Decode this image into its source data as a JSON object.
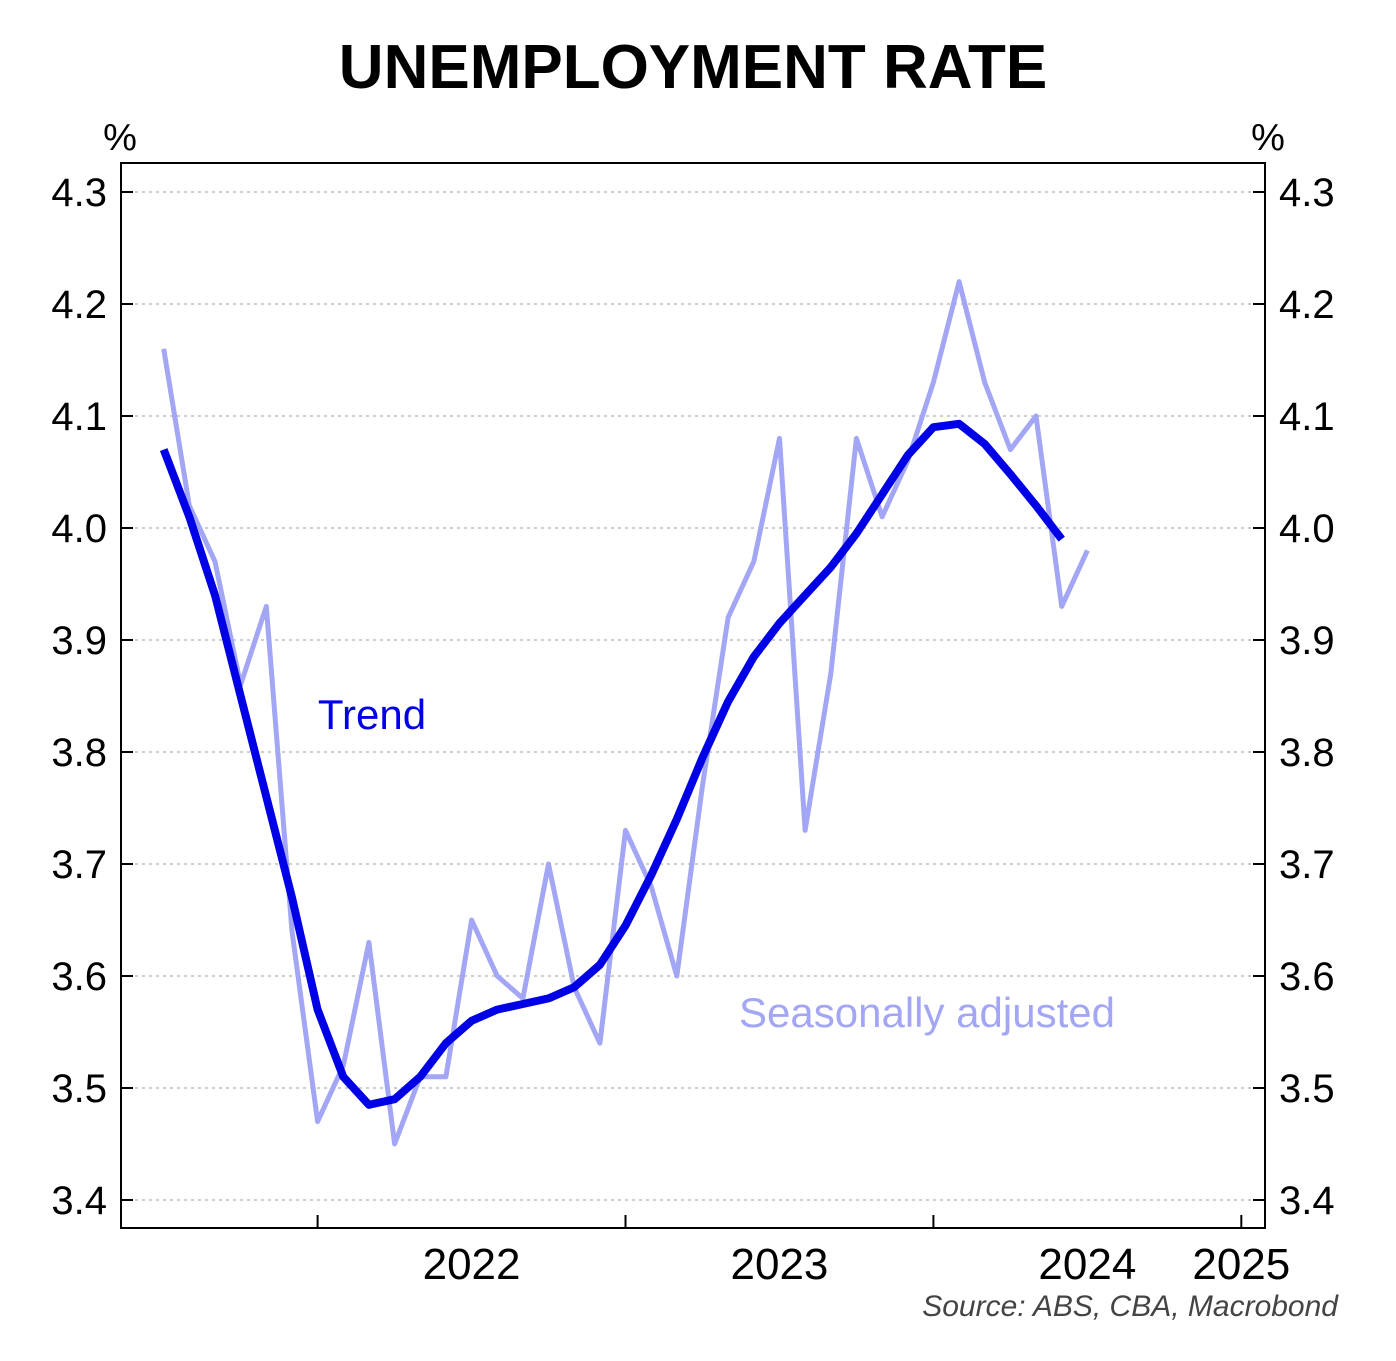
{
  "chart_data": {
    "type": "line",
    "title": "UNEMPLOYMENT RATE",
    "y_unit_left": "%",
    "y_unit_right": "%",
    "ylim": [
      3.4,
      4.3
    ],
    "yticks": [
      "3.4",
      "3.5",
      "3.6",
      "3.7",
      "3.8",
      "3.9",
      "4.0",
      "4.1",
      "4.2",
      "4.3"
    ],
    "xlim": [
      "2021-06",
      "2024-11"
    ],
    "x_ticks": [
      "2022-01",
      "2023-01",
      "2024-01",
      "2025-01"
    ],
    "x_labels": [
      {
        "label": "2022",
        "x": "2022-07"
      },
      {
        "label": "2023",
        "x": "2023-07"
      },
      {
        "label": "2024",
        "x": "2024-07"
      },
      {
        "label": "2025",
        "x": "2025-01"
      }
    ],
    "grid": true,
    "source": "Source: ABS, CBA, Macrobond",
    "x": [
      "2021-07",
      "2021-08",
      "2021-09",
      "2021-10",
      "2021-11",
      "2021-12",
      "2022-01",
      "2022-02",
      "2022-03",
      "2022-04",
      "2022-05",
      "2022-06",
      "2022-07",
      "2022-08",
      "2022-09",
      "2022-10",
      "2022-11",
      "2022-12",
      "2023-01",
      "2023-02",
      "2023-03",
      "2023-04",
      "2023-05",
      "2023-06",
      "2023-07",
      "2023-08",
      "2023-09",
      "2023-10",
      "2023-11",
      "2023-12",
      "2024-01",
      "2024-02",
      "2024-03",
      "2024-04",
      "2024-05",
      "2024-06",
      "2024-07",
      "2024-08",
      "2024-09",
      "2024-10",
      "2024-11"
    ],
    "series": [
      {
        "name": "Seasonally adjusted",
        "color": "#a3a6f5",
        "values": [
          4.16,
          4.02,
          3.97,
          3.86,
          3.93,
          3.64,
          3.47,
          3.52,
          3.63,
          3.45,
          3.51,
          3.51,
          3.65,
          3.6,
          3.58,
          3.7,
          3.59,
          3.54,
          3.73,
          3.68,
          3.6,
          3.77,
          3.92,
          3.97,
          4.08,
          3.73,
          3.87,
          4.08,
          4.01,
          4.06,
          4.13,
          4.22,
          4.13,
          4.07,
          4.1,
          3.93,
          3.98,
          null,
          null,
          null,
          null
        ]
      },
      {
        "name": "Trend",
        "color": "#0000e6",
        "values": [
          4.07,
          4.01,
          3.94,
          3.85,
          3.76,
          3.67,
          3.57,
          3.51,
          3.485,
          3.49,
          3.51,
          3.54,
          3.56,
          3.57,
          3.575,
          3.58,
          3.59,
          3.61,
          3.645,
          3.69,
          3.74,
          3.795,
          3.845,
          3.885,
          3.915,
          3.94,
          3.965,
          3.995,
          4.03,
          4.065,
          4.09,
          4.093,
          4.075,
          4.048,
          4.02,
          3.99,
          null,
          null,
          null,
          null,
          null
        ]
      }
    ]
  }
}
